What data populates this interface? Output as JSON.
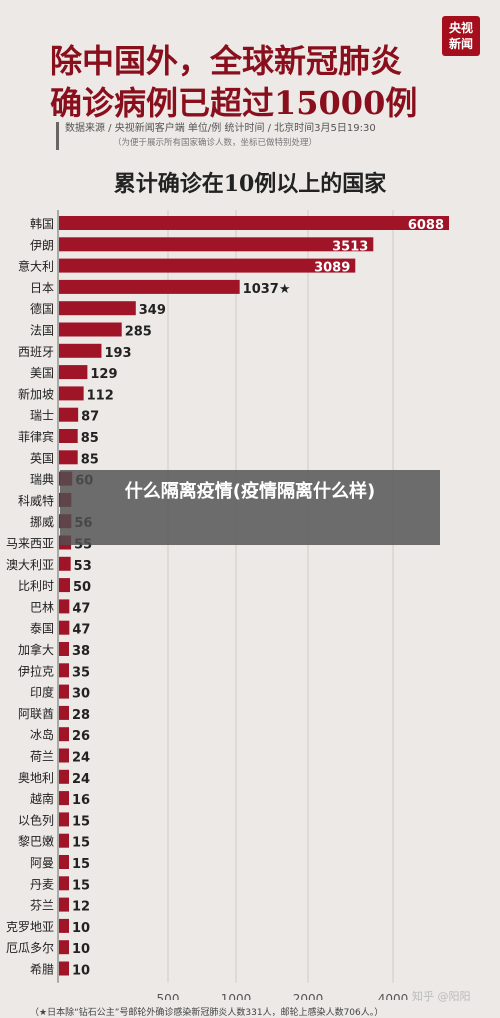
{
  "header": {
    "logo_line1": "央视",
    "logo_line2": "新闻",
    "title_line1": "除中国外，全球新冠肺炎",
    "title_line2": "确诊病例已超过15000例",
    "source": "数据来源 / 央视新闻客户端  单位/例   统计时间 / 北京时间3月5日19:30",
    "source_note": "（为便于展示所有国家确诊人数，坐标已做特别处理）"
  },
  "overlay_text": "什么隔离疫情(疫情隔离什么样)",
  "footnote": "（★日本除“钻石公主”号邮轮外确诊感染新冠肺炎人数331人，邮轮上感染人数706人。）",
  "watermark": "知乎 @阳阳",
  "colors": {
    "bar": "#a01428",
    "text_dark": "#222222"
  },
  "chart_data": {
    "type": "bar",
    "orientation": "horizontal",
    "title": "累计确诊在10例以上的国家",
    "categories": [
      "韩国",
      "伊朗",
      "意大利",
      "日本",
      "德国",
      "法国",
      "西班牙",
      "美国",
      "新加坡",
      "瑞士",
      "菲律宾",
      "英国",
      "瑞典",
      "科威特",
      "挪威",
      "马来西亚",
      "澳大利亚",
      "比利时",
      "巴林",
      "泰国",
      "加拿大",
      "伊拉克",
      "印度",
      "阿联酋",
      "冰岛",
      "荷兰",
      "奥地利",
      "越南",
      "以色列",
      "黎巴嫩",
      "阿曼",
      "丹麦",
      "芬兰",
      "克罗地亚",
      "厄瓜多尔",
      "希腊"
    ],
    "values": [
      6088,
      3513,
      3089,
      1037,
      349,
      285,
      193,
      129,
      112,
      87,
      85,
      85,
      60,
      56,
      56,
      55,
      53,
      50,
      47,
      47,
      38,
      35,
      30,
      28,
      26,
      24,
      24,
      16,
      15,
      15,
      15,
      15,
      12,
      10,
      10,
      10
    ],
    "value_labels": [
      "6088",
      "3513",
      "3089",
      "1037★",
      "349",
      "285",
      "193",
      "129",
      "112",
      "87",
      "85",
      "85",
      "60",
      "",
      "56",
      "55",
      "53",
      "50",
      "47",
      "47",
      "38",
      "35",
      "30",
      "28",
      "26",
      "24",
      "24",
      "16",
      "15",
      "15",
      "15",
      "15",
      "12",
      "10",
      "10",
      "10"
    ],
    "x_ticks": [
      "500",
      "1000",
      "2000",
      "4000"
    ],
    "x_scale": "custom-compressed",
    "grid": true
  }
}
